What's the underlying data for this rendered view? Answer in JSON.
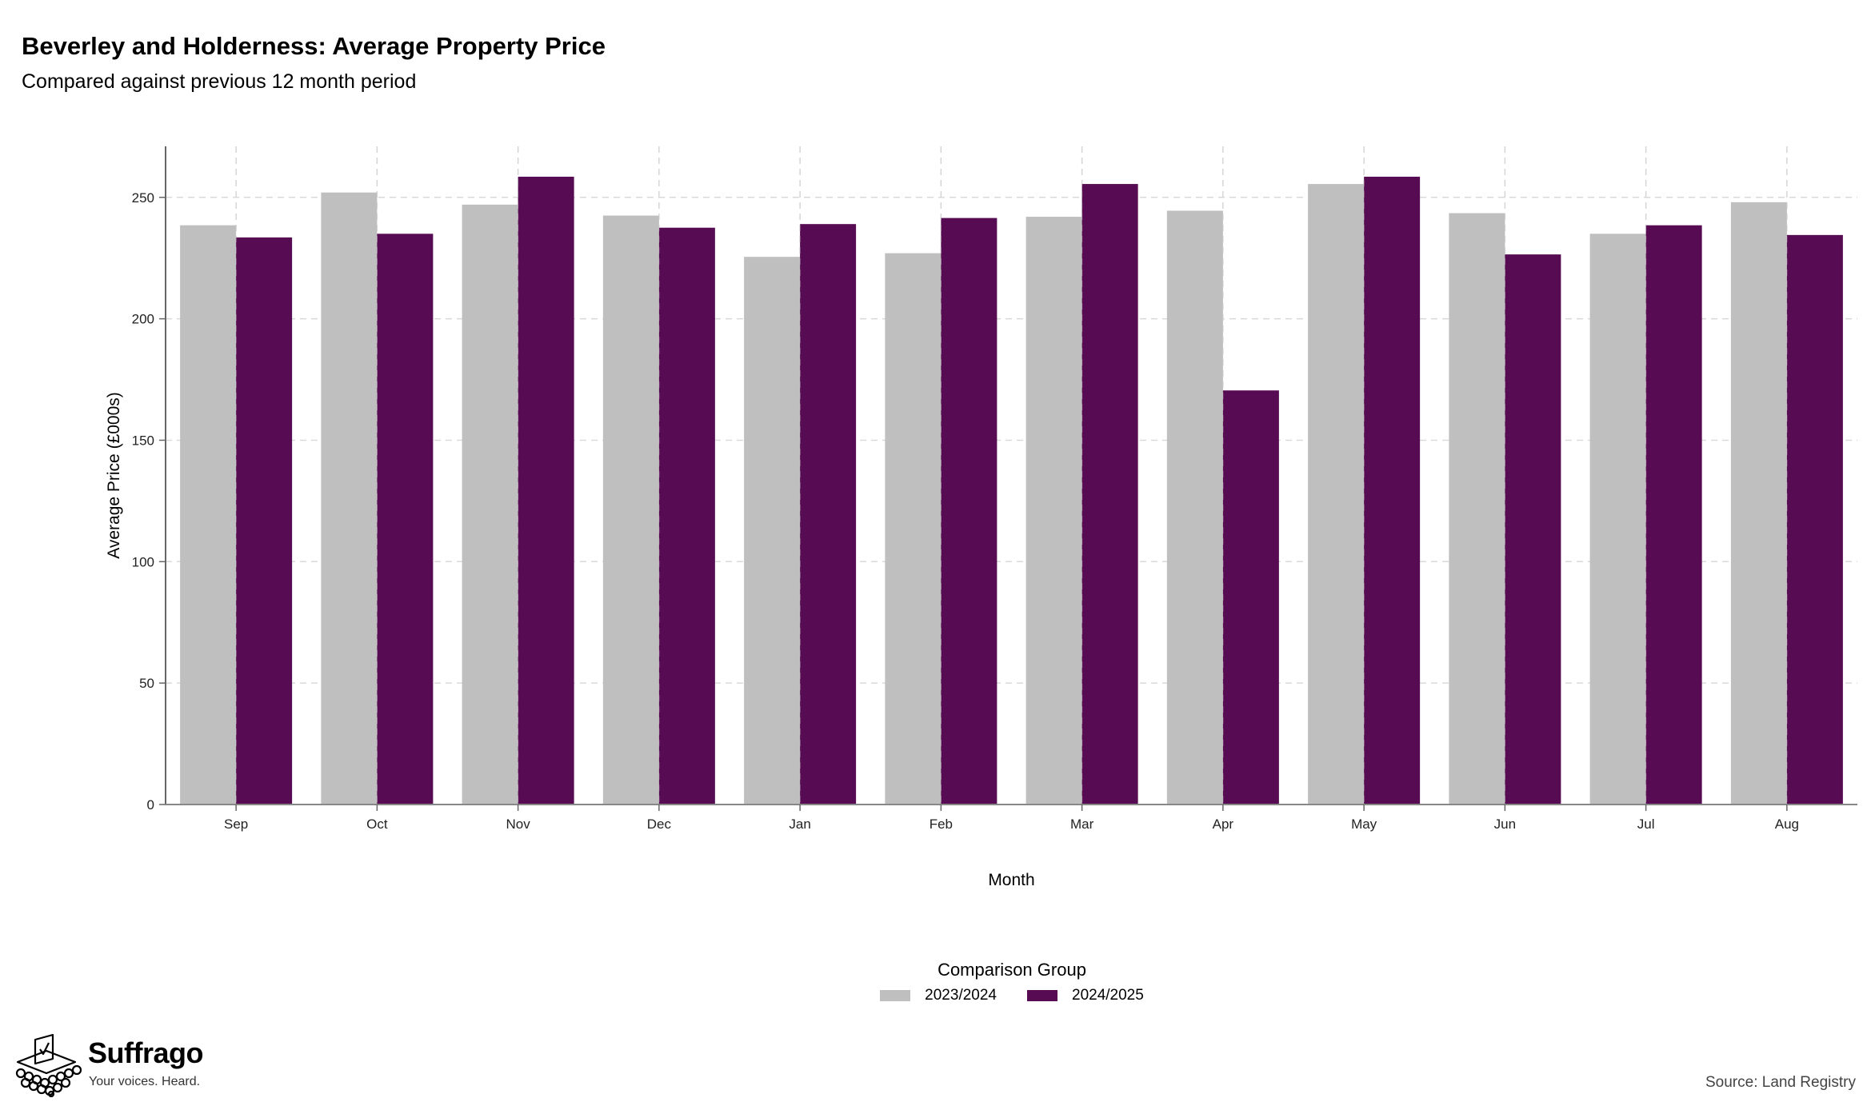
{
  "header": {
    "title": "Beverley and Holderness: Average Property Price",
    "subtitle": "Compared against previous 12 month period"
  },
  "chart_data": {
    "type": "bar",
    "categories": [
      "Sep",
      "Oct",
      "Nov",
      "Dec",
      "Jan",
      "Feb",
      "Mar",
      "Apr",
      "May",
      "Jun",
      "Jul",
      "Aug"
    ],
    "series": [
      {
        "name": "2023/2024",
        "color": "#bfbfbf",
        "values": [
          238.5,
          252,
          247,
          242.5,
          225.5,
          227,
          242,
          244.5,
          255.5,
          243.5,
          235,
          248
        ]
      },
      {
        "name": "2024/2025",
        "color": "#560b52",
        "values": [
          233.5,
          235,
          258.5,
          237.5,
          239,
          241.5,
          255.5,
          170.5,
          258.5,
          226.5,
          238.5,
          234.5
        ]
      }
    ],
    "xlabel": "Month",
    "ylabel": "Average Price (£000s)",
    "ylim": [
      0,
      271
    ],
    "yticks": [
      0,
      50,
      100,
      150,
      200,
      250
    ],
    "grid": true,
    "legend": {
      "title": "Comparison Group",
      "position": "bottom"
    }
  },
  "footer": {
    "brand": "Suffrago",
    "tagline": "Your voices. Heard.",
    "source": "Source: Land Registry"
  }
}
